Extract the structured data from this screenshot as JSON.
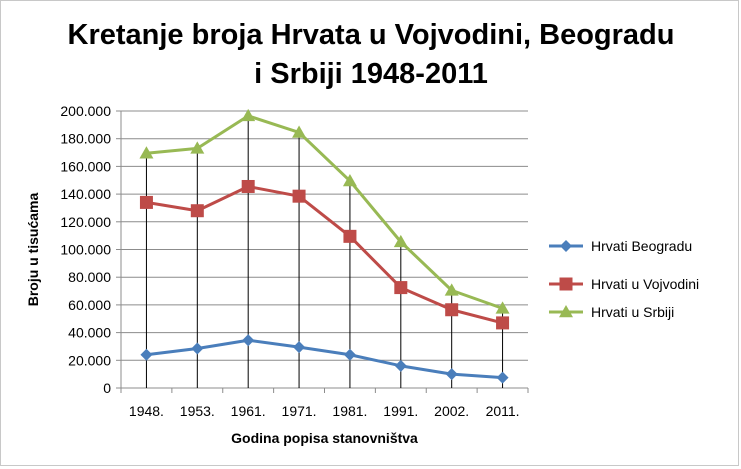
{
  "chart_data": {
    "type": "line",
    "title_lines": [
      "Kretanje broja Hrvata u Vojvodini, Beogradu",
      "i Srbiji 1948-2011"
    ],
    "xlabel": "Godina popisa stanovništva",
    "ylabel": "Broju u tisućama",
    "categories": [
      "1948.",
      "1953.",
      "1961.",
      "1971.",
      "1981.",
      "1991.",
      "2002.",
      "2011."
    ],
    "ylim": [
      0,
      200000
    ],
    "y_ticks": [
      {
        "value": 0,
        "label": "0"
      },
      {
        "value": 20000,
        "label": "20.000"
      },
      {
        "value": 40000,
        "label": "40.000"
      },
      {
        "value": 60000,
        "label": "60.000"
      },
      {
        "value": 80000,
        "label": "80.000"
      },
      {
        "value": 100000,
        "label": "100.000"
      },
      {
        "value": 120000,
        "label": "120.000"
      },
      {
        "value": 140000,
        "label": "140.000"
      },
      {
        "value": 160000,
        "label": "160.000"
      },
      {
        "value": 180000,
        "label": "180.000"
      },
      {
        "value": 200000,
        "label": "200.000"
      }
    ],
    "grid": "horizontal",
    "drop_lines": true,
    "legend_position": "right",
    "series": [
      {
        "name": "Hrvati  Beogradu",
        "color": "#4a7ebb",
        "marker": "diamond",
        "values": [
          24000,
          28500,
          34500,
          29500,
          24000,
          16000,
          10000,
          7500
        ]
      },
      {
        "name": "Hrvati u Vojvodini",
        "color": "#be4b48",
        "marker": "square",
        "values": [
          134000,
          128000,
          145500,
          138500,
          109500,
          72500,
          56500,
          47000
        ]
      },
      {
        "name": "Hrvati u Srbiji",
        "color": "#98b954",
        "marker": "triangle",
        "values": [
          169500,
          173000,
          196500,
          184500,
          149500,
          105500,
          70500,
          57500
        ]
      }
    ]
  }
}
